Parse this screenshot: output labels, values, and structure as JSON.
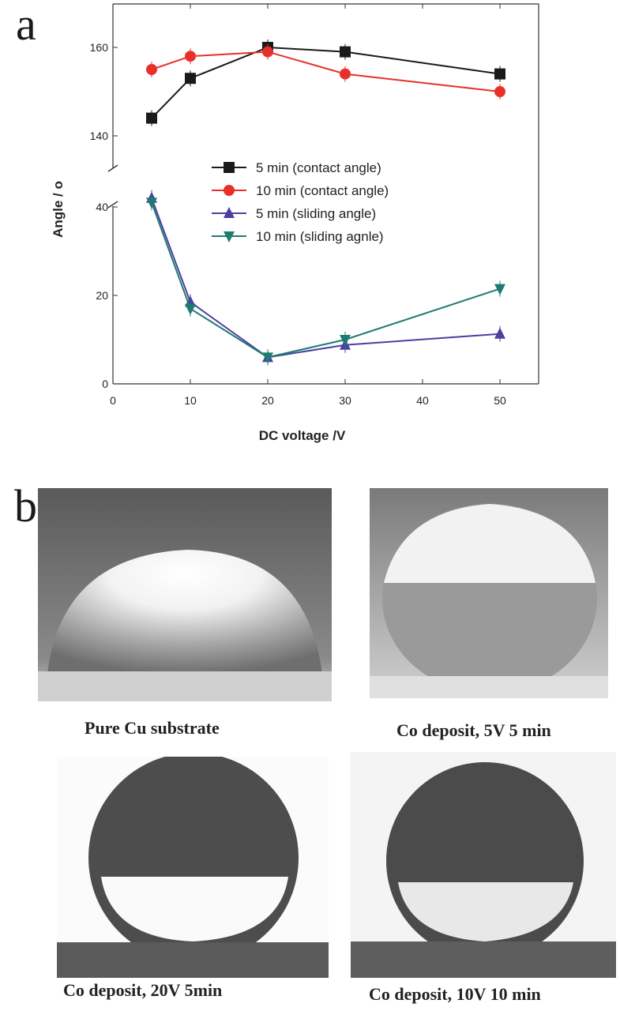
{
  "figure": {
    "panel_a_label": "a",
    "panel_b_label": "b"
  },
  "chart_data": {
    "type": "line",
    "xlabel": "DC voltage /V",
    "ylabel": "Angle / o",
    "x_ticks": [
      "0",
      "10",
      "20",
      "30",
      "40",
      "50"
    ],
    "y_ticks_upper": [
      "140",
      "160"
    ],
    "y_ticks_lower": [
      "0",
      "20",
      "40"
    ],
    "xlim": [
      0,
      55
    ],
    "ylim_upper": [
      130,
      170
    ],
    "ylim_lower": [
      0,
      44
    ],
    "axis_break": true,
    "legend_position": "center",
    "series": [
      {
        "name": "5 min (contact angle)",
        "color": "#1a1a1a",
        "marker": "square",
        "axis": "upper",
        "x": [
          5,
          10,
          20,
          30,
          50
        ],
        "y": [
          144,
          153,
          160,
          159,
          154
        ]
      },
      {
        "name": "10 min (contact angle)",
        "color": "#e8302a",
        "marker": "circle",
        "axis": "upper",
        "x": [
          5,
          10,
          20,
          30,
          50
        ],
        "y": [
          155,
          158,
          159,
          154,
          150
        ]
      },
      {
        "name": "5 min  (sliding angle)",
        "color": "#4b3fa0",
        "marker": "triangle-up",
        "axis": "lower",
        "x": [
          5,
          10,
          20,
          30,
          50
        ],
        "y": [
          42,
          18.5,
          6,
          8.8,
          11.3
        ]
      },
      {
        "name": "10 min (sliding agnle)",
        "color": "#1f7b72",
        "marker": "triangle-down",
        "axis": "lower",
        "x": [
          5,
          10,
          20,
          30,
          50
        ],
        "y": [
          41,
          17,
          6,
          10,
          21.5
        ]
      }
    ]
  },
  "photos": [
    {
      "caption": "Pure Cu substrate"
    },
    {
      "caption": "Co deposit, 5V 5 min"
    },
    {
      "caption": "Co deposit, 20V 5min"
    },
    {
      "caption": "Co deposit, 10V 10 min"
    }
  ]
}
